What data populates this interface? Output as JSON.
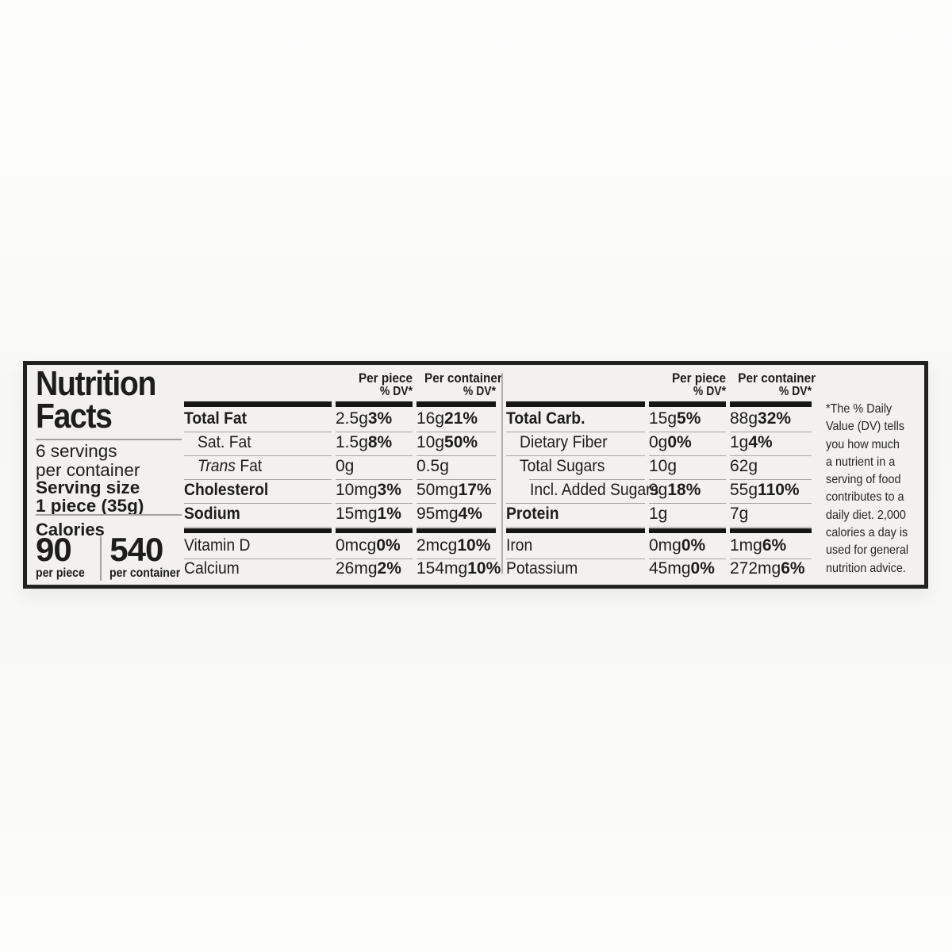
{
  "label": {
    "title_line1": "Nutrition",
    "title_line2": "Facts",
    "servings_line1": "6 servings",
    "servings_line2": "per container",
    "serving_size_label": "Serving size",
    "serving_size_value": "1 piece (35g)",
    "calories_label": "Calories",
    "calories_per_piece": "90",
    "calories_per_piece_caption": "per piece",
    "calories_per_container": "540",
    "calories_per_container_caption": "per container"
  },
  "columns": {
    "per_piece": "Per piece",
    "per_container": "Per container",
    "dv": "% DV*"
  },
  "fat_table": {
    "rows": [
      {
        "name": "Total Fat",
        "pp_amt": "2.5g",
        "pp_dv": "3%",
        "pc_amt": "16g",
        "pc_dv": "21%"
      },
      {
        "name": "Sat. Fat",
        "pp_amt": "1.5g",
        "pp_dv": "8%",
        "pc_amt": "10g",
        "pc_dv": "50%"
      },
      {
        "name_italic": "Trans",
        "name": " Fat",
        "pp_amt": "0g",
        "pp_dv": "",
        "pc_amt": "0.5g",
        "pc_dv": ""
      },
      {
        "name": "Cholesterol",
        "pp_amt": "10mg",
        "pp_dv": "3%",
        "pc_amt": "50mg",
        "pc_dv": "17%"
      },
      {
        "name": "Sodium",
        "pp_amt": "15mg",
        "pp_dv": "1%",
        "pc_amt": "95mg",
        "pc_dv": "4%"
      }
    ],
    "vitamin_rows": [
      {
        "name": "Vitamin D",
        "pp_amt": "0mcg",
        "pp_dv": "0%",
        "pc_amt": "2mcg",
        "pc_dv": "10%"
      },
      {
        "name": "Calcium",
        "pp_amt": "26mg",
        "pp_dv": "2%",
        "pc_amt": "154mg",
        "pc_dv": "10%"
      }
    ]
  },
  "carb_table": {
    "rows": [
      {
        "name": "Total Carb.",
        "pp_amt": "15g",
        "pp_dv": "5%",
        "pc_amt": "88g",
        "pc_dv": "32%"
      },
      {
        "name": "Dietary Fiber",
        "pp_amt": "0g",
        "pp_dv": "0%",
        "pc_amt": "1g",
        "pc_dv": "4%"
      },
      {
        "name": "Total Sugars",
        "pp_amt": "10g",
        "pp_dv": "",
        "pc_amt": "62g",
        "pc_dv": ""
      },
      {
        "name": "Incl. Added Sugars",
        "pp_amt": "9g",
        "pp_dv": "18%",
        "pc_amt": "55g",
        "pc_dv": "110%"
      },
      {
        "name": "Protein",
        "pp_amt": "1g",
        "pp_dv": "",
        "pc_amt": "7g",
        "pc_dv": ""
      }
    ],
    "vitamin_rows": [
      {
        "name": "Iron",
        "pp_amt": "0mg",
        "pp_dv": "0%",
        "pc_amt": "1mg",
        "pc_dv": "6%"
      },
      {
        "name": "Potassium",
        "pp_amt": "45mg",
        "pp_dv": "0%",
        "pc_amt": "272mg",
        "pc_dv": "6%"
      }
    ]
  },
  "footnote": {
    "lines": [
      "*The % Daily",
      "Value (DV) tells",
      "you how much",
      "a nutrient in a",
      "serving of food",
      "contributes to a",
      "daily diet. 2,000",
      "calories a day is",
      "used for general",
      "nutrition advice."
    ]
  },
  "colors": {
    "label_background": "#f2f1ee",
    "border_black": "#22221f",
    "hairline_gray": "#a7a6a2",
    "text_black": "#1d1d1b"
  }
}
